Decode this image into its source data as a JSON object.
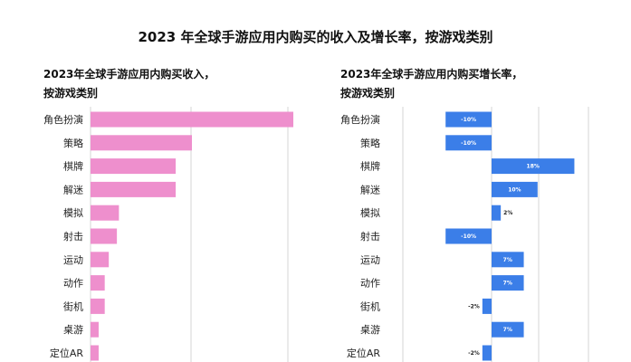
{
  "title": "2023 年全球手游应用内购买的收入及增长率，按游戏类别",
  "chart_data": [
    {
      "type": "bar",
      "orientation": "horizontal",
      "title_lines": [
        "2023年全球手游应用内购买收入，",
        "按游戏类别"
      ],
      "categories": [
        "角色扮演",
        "策略",
        "棋牌",
        "解迷",
        "模拟",
        "射击",
        "运动",
        "动作",
        "街机",
        "桌游",
        "定位AR"
      ],
      "values": [
        100,
        50,
        42,
        42,
        14,
        13,
        9,
        7,
        7,
        4,
        4
      ],
      "xlim": [
        0,
        100
      ],
      "grid": true,
      "bar_color": "#ee8fcd"
    },
    {
      "type": "bar",
      "orientation": "horizontal",
      "title_lines": [
        "2023年全球手游应用内购买增长率，",
        "按游戏类别"
      ],
      "categories": [
        "角色扮演",
        "策略",
        "棋牌",
        "解迷",
        "模拟",
        "射击",
        "运动",
        "动作",
        "街机",
        "桌游",
        "定位AR"
      ],
      "values": [
        -10,
        -10,
        18,
        10,
        2,
        -10,
        7,
        7,
        -2,
        7,
        -2
      ],
      "labels": [
        "-10%",
        "-10%",
        "18%",
        "10%",
        "2%",
        "-10%",
        "7%",
        "7%",
        "-2%",
        "7%",
        "-2%"
      ],
      "xlim": [
        -15,
        20
      ],
      "grid": true,
      "bar_color": "#3b7ee8"
    }
  ]
}
